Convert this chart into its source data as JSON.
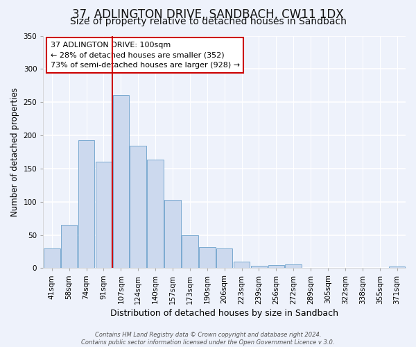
{
  "title": "37, ADLINGTON DRIVE, SANDBACH, CW11 1DX",
  "subtitle": "Size of property relative to detached houses in Sandbach",
  "xlabel": "Distribution of detached houses by size in Sandbach",
  "ylabel": "Number of detached properties",
  "bar_labels": [
    "41sqm",
    "58sqm",
    "74sqm",
    "91sqm",
    "107sqm",
    "124sqm",
    "140sqm",
    "157sqm",
    "173sqm",
    "190sqm",
    "206sqm",
    "223sqm",
    "239sqm",
    "256sqm",
    "272sqm",
    "289sqm",
    "305sqm",
    "322sqm",
    "338sqm",
    "355sqm",
    "371sqm"
  ],
  "bar_heights": [
    30,
    65,
    193,
    160,
    261,
    184,
    163,
    103,
    50,
    32,
    30,
    10,
    4,
    5,
    6,
    0,
    0,
    0,
    0,
    0,
    2
  ],
  "bar_color": "#ccd9ee",
  "bar_edge_color": "#7aaad0",
  "annotation_box_text": "37 ADLINGTON DRIVE: 100sqm\n← 28% of detached houses are smaller (352)\n73% of semi-detached houses are larger (928) →",
  "vline_color": "#cc0000",
  "vline_position": 3.5,
  "ylim": [
    0,
    350
  ],
  "yticks": [
    0,
    50,
    100,
    150,
    200,
    250,
    300,
    350
  ],
  "title_fontsize": 12,
  "subtitle_fontsize": 10,
  "xlabel_fontsize": 9,
  "ylabel_fontsize": 8.5,
  "tick_fontsize": 7.5,
  "annot_fontsize": 8,
  "footer_text": "Contains HM Land Registry data © Crown copyright and database right 2024.\nContains public sector information licensed under the Open Government Licence v 3.0.",
  "bg_color": "#eef2fb",
  "plot_bg_color": "#eef2fb",
  "grid_color": "#ffffff"
}
